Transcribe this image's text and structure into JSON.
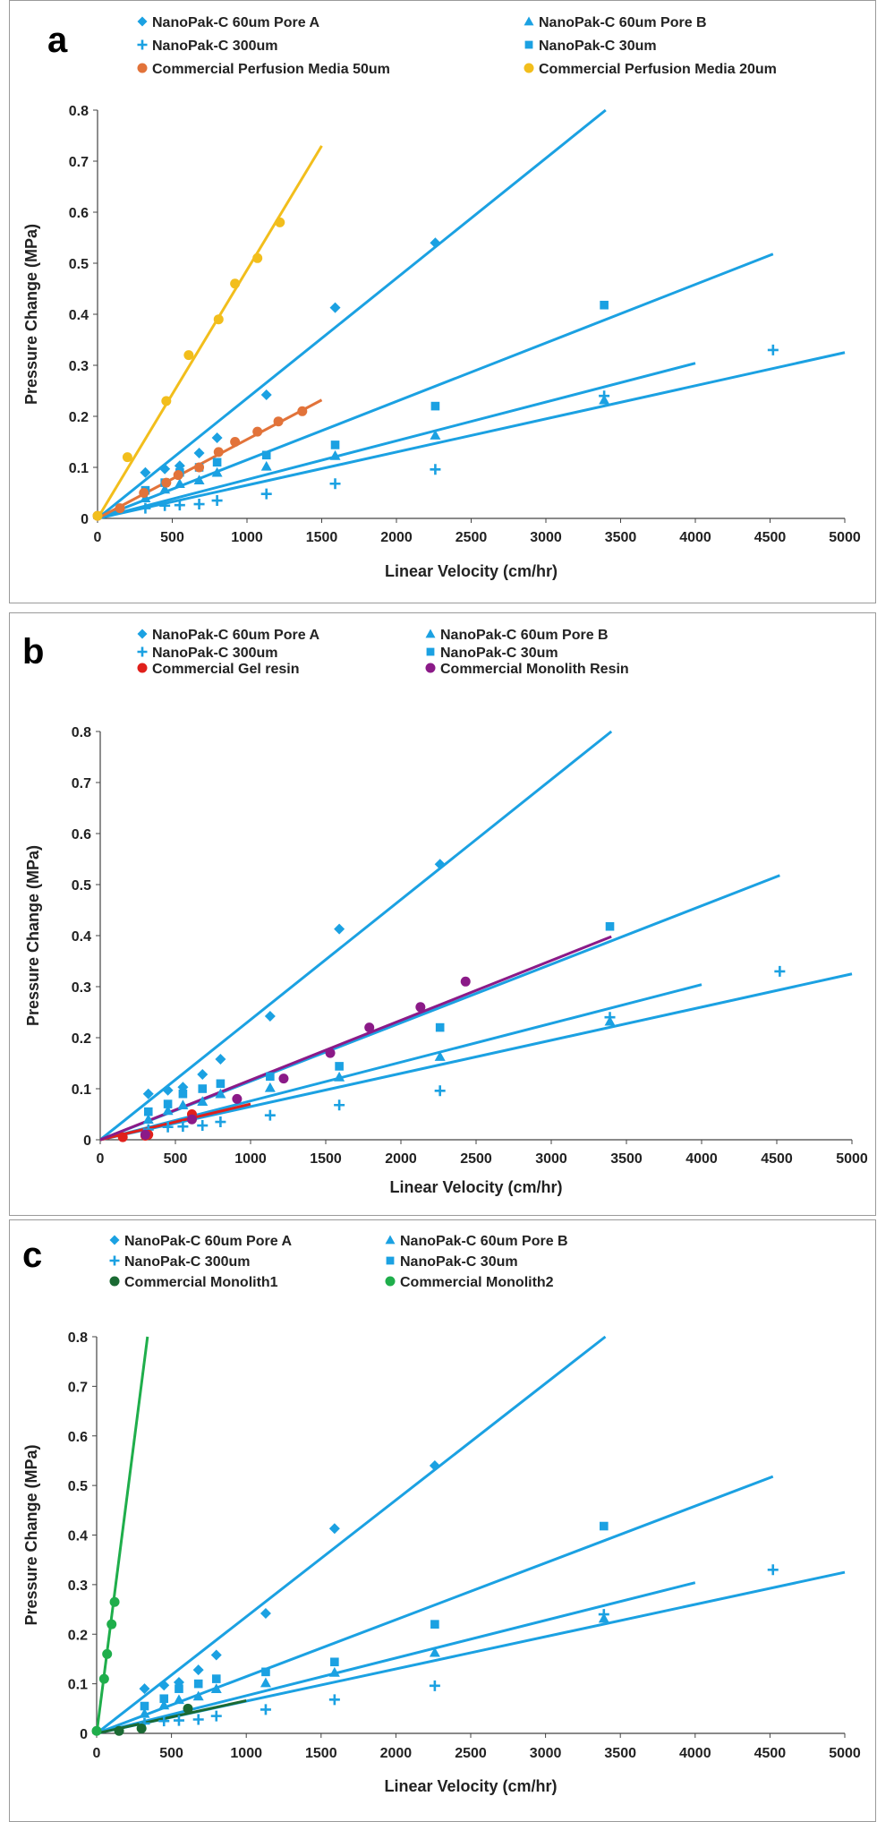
{
  "chart_data": [
    {
      "type": "scatter",
      "panel": "a",
      "xlabel": "Linear Velocity (cm/hr)",
      "ylabel": "Pressure Change (MPa)",
      "xlim": [
        0,
        5000
      ],
      "ylim": [
        0,
        0.8
      ],
      "xticks": [
        0,
        500,
        1000,
        1500,
        2000,
        2500,
        3000,
        3500,
        4000,
        4500,
        5000
      ],
      "yticks": [
        0,
        0.1,
        0.2,
        0.3,
        0.4,
        0.5,
        0.6,
        0.7,
        0.8
      ],
      "series": [
        {
          "name": "NanoPak-C 60um Pore A",
          "marker": "diamond",
          "color": "#1ba1e2",
          "x": [
            320,
            450,
            550,
            680,
            800,
            1130,
            1590,
            2260
          ],
          "y": [
            0.09,
            0.097,
            0.103,
            0.128,
            0.158,
            0.242,
            0.413,
            0.54
          ],
          "fit": {
            "x": [
              0,
              3400
            ],
            "y": [
              0,
              0.8
            ]
          }
        },
        {
          "name": "NanoPak-C 60um Pore B",
          "marker": "triangle",
          "color": "#1ba1e2",
          "x": [
            320,
            450,
            550,
            680,
            800,
            1130,
            1590,
            2260,
            3390
          ],
          "y": [
            0.04,
            0.057,
            0.068,
            0.075,
            0.09,
            0.102,
            0.123,
            0.163,
            0.232
          ],
          "fit": {
            "x": [
              0,
              4000
            ],
            "y": [
              0,
              0.304
            ]
          }
        },
        {
          "name": "NanoPak-C 300um",
          "marker": "plus",
          "color": "#1ba1e2",
          "x": [
            320,
            450,
            550,
            680,
            800,
            1130,
            1590,
            2260,
            3390,
            4520
          ],
          "y": [
            0.02,
            0.025,
            0.026,
            0.028,
            0.035,
            0.048,
            0.068,
            0.096,
            0.24,
            0.33
          ],
          "fit": {
            "x": [
              0,
              5000
            ],
            "y": [
              0,
              0.325
            ]
          }
        },
        {
          "name": "NanoPak-C 30um",
          "marker": "square",
          "color": "#1ba1e2",
          "x": [
            320,
            450,
            550,
            680,
            800,
            1130,
            1590,
            2260,
            3390
          ],
          "y": [
            0.055,
            0.07,
            0.09,
            0.1,
            0.11,
            0.124,
            0.144,
            0.22,
            0.418
          ],
          "fit": {
            "x": [
              0,
              4520
            ],
            "y": [
              0,
              0.518
            ]
          }
        },
        {
          "name": "Commercial Perfusion Media 50um",
          "marker": "circle",
          "color": "#e2733a",
          "x": [
            0,
            150,
            310,
            460,
            540,
            680,
            810,
            920,
            1070,
            1210,
            1370
          ],
          "y": [
            0.005,
            0.02,
            0.05,
            0.07,
            0.085,
            0.1,
            0.13,
            0.15,
            0.17,
            0.19,
            0.21
          ],
          "fit": {
            "x": [
              0,
              1500
            ],
            "y": [
              0,
              0.232
            ]
          }
        },
        {
          "name": "Commercial Perfusion Media 20um",
          "marker": "circle",
          "color": "#f2be1c",
          "x": [
            0,
            200,
            460,
            610,
            810,
            920,
            1070,
            1220
          ],
          "y": [
            0.005,
            0.12,
            0.23,
            0.32,
            0.39,
            0.46,
            0.51,
            0.58
          ],
          "fit": {
            "x": [
              0,
              1500
            ],
            "y": [
              0,
              0.73
            ]
          }
        }
      ]
    },
    {
      "type": "scatter",
      "panel": "b",
      "xlabel": "Linear Velocity (cm/hr)",
      "ylabel": "Pressure Change (MPa)",
      "xlim": [
        0,
        5000
      ],
      "ylim": [
        0,
        0.8
      ],
      "xticks": [
        0,
        500,
        1000,
        1500,
        2000,
        2500,
        3000,
        3500,
        4000,
        4500,
        5000
      ],
      "yticks": [
        0,
        0.1,
        0.2,
        0.3,
        0.4,
        0.5,
        0.6,
        0.7,
        0.8
      ],
      "series": [
        {
          "name": "NanoPak-C 60um Pore A",
          "marker": "diamond",
          "color": "#1ba1e2",
          "x": [
            320,
            450,
            550,
            680,
            800,
            1130,
            1590,
            2260
          ],
          "y": [
            0.09,
            0.097,
            0.103,
            0.128,
            0.158,
            0.242,
            0.413,
            0.54
          ],
          "fit": {
            "x": [
              0,
              3400
            ],
            "y": [
              0,
              0.8
            ]
          }
        },
        {
          "name": "NanoPak-C 60um Pore B",
          "marker": "triangle",
          "color": "#1ba1e2",
          "x": [
            320,
            450,
            550,
            680,
            800,
            1130,
            1590,
            2260,
            3390
          ],
          "y": [
            0.04,
            0.057,
            0.068,
            0.075,
            0.09,
            0.102,
            0.123,
            0.163,
            0.232
          ],
          "fit": {
            "x": [
              0,
              4000
            ],
            "y": [
              0,
              0.304
            ]
          }
        },
        {
          "name": "NanoPak-C 300um",
          "marker": "plus",
          "color": "#1ba1e2",
          "x": [
            320,
            450,
            550,
            680,
            800,
            1130,
            1590,
            2260,
            3390,
            4520
          ],
          "y": [
            0.02,
            0.025,
            0.026,
            0.028,
            0.035,
            0.048,
            0.068,
            0.096,
            0.24,
            0.33
          ],
          "fit": {
            "x": [
              0,
              5000
            ],
            "y": [
              0,
              0.325
            ]
          }
        },
        {
          "name": "NanoPak-C 30um",
          "marker": "square",
          "color": "#1ba1e2",
          "x": [
            320,
            450,
            550,
            680,
            800,
            1130,
            1590,
            2260,
            3390
          ],
          "y": [
            0.055,
            0.07,
            0.09,
            0.1,
            0.11,
            0.124,
            0.144,
            0.22,
            0.418
          ],
          "fit": {
            "x": [
              0,
              4520
            ],
            "y": [
              0,
              0.518
            ]
          }
        },
        {
          "name": "Commercial Gel resin",
          "marker": "circle",
          "color": "#e0201b",
          "x": [
            150,
            300,
            320,
            610
          ],
          "y": [
            0.005,
            0.008,
            0.01,
            0.05
          ],
          "fit": {
            "x": [
              0,
              1000
            ],
            "y": [
              0,
              0.07
            ]
          }
        },
        {
          "name": "Commercial Monolith Resin",
          "marker": "circle",
          "color": "#8b1a88",
          "x": [
            300,
            610,
            910,
            1220,
            1530,
            1790,
            2130,
            2430
          ],
          "y": [
            0.01,
            0.04,
            0.08,
            0.12,
            0.17,
            0.22,
            0.26,
            0.31
          ],
          "fit": {
            "x": [
              0,
              3400
            ],
            "y": [
              0,
              0.398
            ]
          }
        }
      ]
    },
    {
      "type": "scatter",
      "panel": "c",
      "xlabel": "Linear Velocity (cm/hr)",
      "ylabel": "Pressure Change (MPa)",
      "xlim": [
        0,
        5000
      ],
      "ylim": [
        0,
        0.8
      ],
      "xticks": [
        0,
        500,
        1000,
        1500,
        2000,
        2500,
        3000,
        3500,
        4000,
        4500,
        5000
      ],
      "yticks": [
        0,
        0.1,
        0.2,
        0.3,
        0.4,
        0.5,
        0.6,
        0.7,
        0.8
      ],
      "series": [
        {
          "name": "NanoPak-C 60um Pore A",
          "marker": "diamond",
          "color": "#1ba1e2",
          "x": [
            320,
            450,
            550,
            680,
            800,
            1130,
            1590,
            2260
          ],
          "y": [
            0.09,
            0.097,
            0.103,
            0.128,
            0.158,
            0.242,
            0.413,
            0.54
          ],
          "fit": {
            "x": [
              0,
              3400
            ],
            "y": [
              0,
              0.8
            ]
          }
        },
        {
          "name": "NanoPak-C 60um Pore B",
          "marker": "triangle",
          "color": "#1ba1e2",
          "x": [
            320,
            450,
            550,
            680,
            800,
            1130,
            1590,
            2260,
            3390
          ],
          "y": [
            0.04,
            0.057,
            0.068,
            0.075,
            0.09,
            0.102,
            0.123,
            0.163,
            0.232
          ],
          "fit": {
            "x": [
              0,
              4000
            ],
            "y": [
              0,
              0.304
            ]
          }
        },
        {
          "name": "NanoPak-C 300um",
          "marker": "plus",
          "color": "#1ba1e2",
          "x": [
            320,
            450,
            550,
            680,
            800,
            1130,
            1590,
            2260,
            3390,
            4520
          ],
          "y": [
            0.02,
            0.025,
            0.026,
            0.028,
            0.035,
            0.048,
            0.068,
            0.096,
            0.24,
            0.33
          ],
          "fit": {
            "x": [
              0,
              5000
            ],
            "y": [
              0,
              0.325
            ]
          }
        },
        {
          "name": "NanoPak-C 30um",
          "marker": "square",
          "color": "#1ba1e2",
          "x": [
            320,
            450,
            550,
            680,
            800,
            1130,
            1590,
            2260,
            3390
          ],
          "y": [
            0.055,
            0.07,
            0.09,
            0.1,
            0.11,
            0.124,
            0.144,
            0.22,
            0.418
          ],
          "fit": {
            "x": [
              0,
              4520
            ],
            "y": [
              0,
              0.518
            ]
          }
        },
        {
          "name": "Commercial Monolith1",
          "marker": "circle",
          "color": "#1a6a33",
          "x": [
            150,
            300,
            610
          ],
          "y": [
            0.005,
            0.01,
            0.05
          ],
          "fit": {
            "x": [
              0,
              1000
            ],
            "y": [
              0,
              0.066
            ]
          }
        },
        {
          "name": "Commercial Monolith2",
          "marker": "circle",
          "color": "#1fae4b",
          "x": [
            0,
            50,
            70,
            100,
            120
          ],
          "y": [
            0.005,
            0.11,
            0.16,
            0.22,
            0.265
          ],
          "fit": {
            "x": [
              0,
              340
            ],
            "y": [
              0,
              0.8
            ]
          }
        }
      ]
    }
  ]
}
